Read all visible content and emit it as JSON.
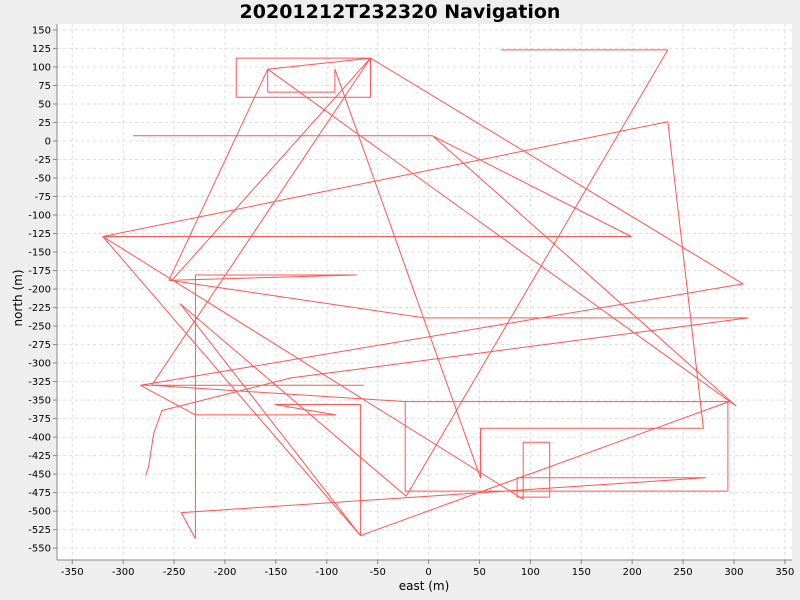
{
  "chart_data": {
    "type": "line",
    "title": "20201212T232320 Navigation",
    "xlabel": "east (m)",
    "ylabel": "north (m)",
    "xlim": [
      -365,
      357
    ],
    "ylim": [
      -566,
      158
    ],
    "x_ticks": [
      -350,
      -300,
      -250,
      -200,
      -150,
      -100,
      -50,
      0,
      50,
      100,
      150,
      200,
      250,
      300,
      350
    ],
    "y_ticks": [
      150,
      125,
      100,
      75,
      50,
      25,
      0,
      -25,
      -50,
      -75,
      -100,
      -125,
      -150,
      -175,
      -200,
      -225,
      -250,
      -275,
      -300,
      -325,
      -350,
      -375,
      -400,
      -425,
      -450,
      -475,
      -500,
      -525,
      -550
    ],
    "grid": true,
    "legend": "none",
    "series": [
      {
        "color": "#ff5555",
        "points": [
          [
            -278,
            -452
          ],
          [
            -275,
            -440
          ],
          [
            -270,
            -395
          ],
          [
            -262,
            -364
          ],
          [
            -135,
            -320
          ],
          [
            314,
            -239
          ],
          [
            -4,
            -239
          ],
          [
            -255,
            -188
          ],
          [
            -158,
            97
          ],
          [
            -57,
            112
          ],
          [
            -189,
            112
          ],
          [
            -189,
            59
          ],
          [
            -57,
            59
          ],
          [
            -57,
            112
          ],
          [
            -252,
            -188
          ],
          [
            -71,
            -181
          ],
          [
            -229,
            -181
          ],
          [
            -229,
            -537
          ],
          [
            -243,
            -502
          ],
          [
            272,
            -455
          ],
          [
            87,
            -455
          ],
          [
            87,
            -481
          ],
          [
            119,
            -481
          ],
          [
            119,
            -407
          ],
          [
            93,
            -407
          ],
          [
            93,
            -484
          ],
          [
            -320,
            -129
          ],
          [
            235,
            26
          ],
          [
            270,
            -388
          ],
          [
            51,
            -388
          ],
          [
            51,
            -455
          ],
          [
            -92,
            97
          ],
          [
            -92,
            66
          ],
          [
            -158,
            66
          ],
          [
            -158,
            97
          ],
          [
            302,
            -358
          ],
          [
            4,
            7
          ],
          [
            -290,
            7
          ],
          [
            4,
            7
          ],
          [
            199,
            -129
          ],
          [
            -320,
            -129
          ],
          [
            -67,
            -533
          ],
          [
            -67,
            -356
          ],
          [
            -151,
            -356
          ],
          [
            -91,
            -370
          ],
          [
            -229,
            -370
          ],
          [
            -283,
            -330
          ],
          [
            -64,
            -330
          ],
          [
            -283,
            -330
          ],
          [
            309,
            -193
          ],
          [
            -57,
            112
          ],
          [
            -272,
            -330
          ],
          [
            -23,
            -352
          ],
          [
            -23,
            -473
          ],
          [
            294,
            -473
          ],
          [
            294,
            -352
          ],
          [
            -23,
            -352
          ],
          [
            295,
            -352
          ],
          [
            -67,
            -533
          ],
          [
            -244,
            -220
          ],
          [
            -22,
            -480
          ],
          [
            235,
            123
          ],
          [
            71,
            123
          ]
        ]
      }
    ]
  }
}
